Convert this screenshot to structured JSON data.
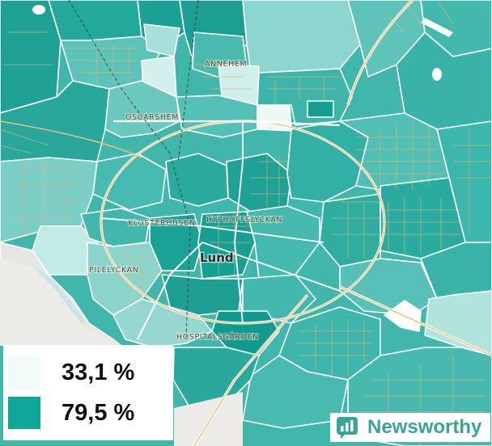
{
  "legend": {
    "min_label": "33,1 %",
    "max_label": "79,5 %",
    "min_color": "#f3fbfa",
    "max_color": "#10a699"
  },
  "labels": {
    "annehem": "ANNEHEM",
    "oscarshem": "OSCARSHEM",
    "klosterhusen": "KLOSTERHUSEN",
    "hyphoffslyckan": "HYPHOFFSLYCKAN",
    "pilelyckan": "PILELYCKAN",
    "hospitalsgarden": "HOSPITALSGÅRDEN",
    "city": "Lund"
  },
  "brand": {
    "name": "Newsworthy",
    "icon": "newsworthy-logo-icon",
    "color": "#3aa39a"
  }
}
